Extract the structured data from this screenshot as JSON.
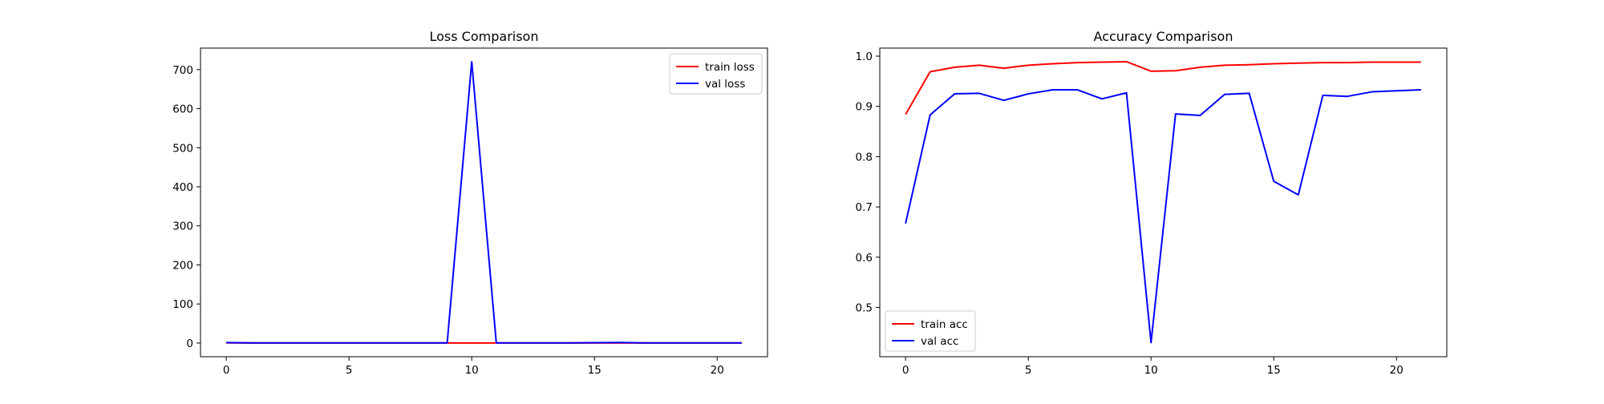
{
  "chart_data": [
    {
      "type": "line",
      "title": "Loss Comparison",
      "xlabel": "",
      "ylabel": "",
      "x": [
        0,
        1,
        2,
        3,
        4,
        5,
        6,
        7,
        8,
        9,
        10,
        11,
        12,
        13,
        14,
        15,
        16,
        17,
        18,
        19,
        20,
        21
      ],
      "xlim": [
        -1.05,
        22.05
      ],
      "ylim": [
        -35,
        755
      ],
      "xticks": [
        0,
        5,
        10,
        15,
        20
      ],
      "yticks": [
        0,
        100,
        200,
        300,
        400,
        500,
        600,
        700
      ],
      "grid": false,
      "legend": "top-right",
      "series": [
        {
          "name": "train loss",
          "color": "#ff0000",
          "values": [
            0.35,
            0.1,
            0.08,
            0.07,
            0.08,
            0.06,
            0.05,
            0.05,
            0.04,
            0.04,
            0.1,
            0.09,
            0.07,
            0.06,
            0.05,
            0.05,
            0.05,
            0.04,
            0.04,
            0.04,
            0.04,
            0.04
          ]
        },
        {
          "name": "val loss",
          "color": "#0000ff",
          "values": [
            1.2,
            0.4,
            0.3,
            0.3,
            0.35,
            0.3,
            0.28,
            0.28,
            0.3,
            0.3,
            720,
            0.5,
            0.5,
            0.3,
            0.35,
            0.9,
            1.3,
            0.4,
            0.45,
            0.35,
            0.35,
            0.35
          ]
        }
      ]
    },
    {
      "type": "line",
      "title": "Accuracy Comparison",
      "xlabel": "",
      "ylabel": "",
      "x": [
        0,
        1,
        2,
        3,
        4,
        5,
        6,
        7,
        8,
        9,
        10,
        11,
        12,
        13,
        14,
        15,
        16,
        17,
        18,
        19,
        20,
        21
      ],
      "xlim": [
        -1.05,
        22.05
      ],
      "ylim": [
        0.402,
        1.016
      ],
      "xticks": [
        0,
        5,
        10,
        15,
        20
      ],
      "yticks": [
        0.5,
        0.6,
        0.7,
        0.8,
        0.9,
        1.0
      ],
      "grid": false,
      "legend": "bottom-left",
      "series": [
        {
          "name": "train acc",
          "color": "#ff0000",
          "values": [
            0.884,
            0.969,
            0.978,
            0.982,
            0.976,
            0.982,
            0.985,
            0.987,
            0.988,
            0.989,
            0.97,
            0.971,
            0.978,
            0.982,
            0.983,
            0.985,
            0.986,
            0.987,
            0.987,
            0.988,
            0.988,
            0.988
          ]
        },
        {
          "name": "val acc",
          "color": "#0000ff",
          "values": [
            0.667,
            0.883,
            0.925,
            0.926,
            0.912,
            0.925,
            0.933,
            0.933,
            0.915,
            0.927,
            0.43,
            0.885,
            0.882,
            0.924,
            0.926,
            0.751,
            0.724,
            0.922,
            0.92,
            0.929,
            0.931,
            0.933
          ]
        }
      ]
    }
  ]
}
